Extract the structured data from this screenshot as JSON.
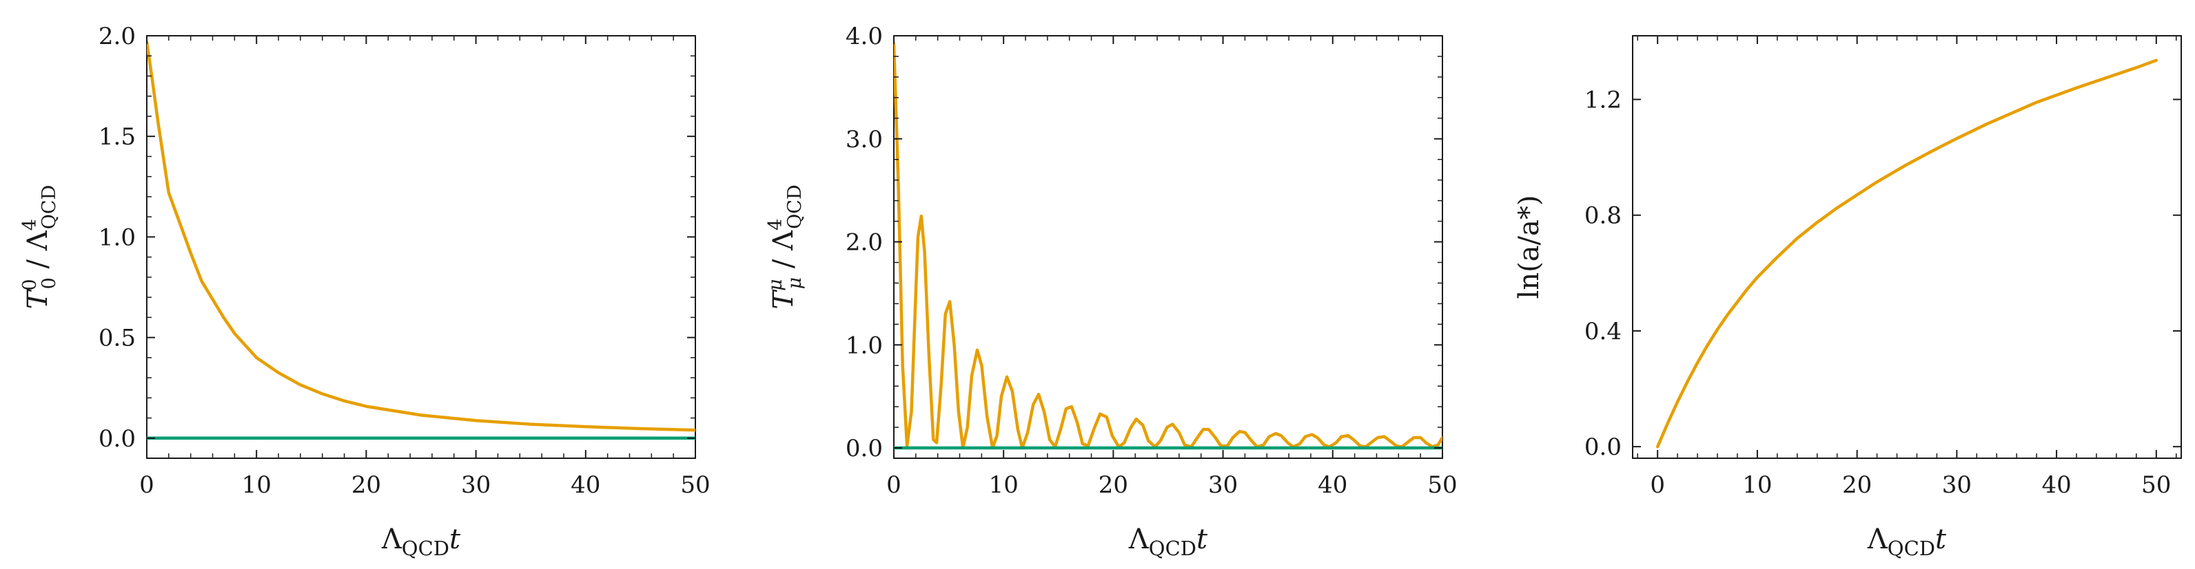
{
  "colors": {
    "orange": "#E69F00",
    "green": "#009E73",
    "axis": "#1a1a1a"
  },
  "chart_data": [
    {
      "type": "line",
      "xlabel": "ΛQCDt",
      "ylabel": "T00/Λ4QCD",
      "ylabel_parts": {
        "main": "T",
        "sup": "0",
        "sub": "0",
        "slash": " / Λ",
        "qsup": "4",
        "qsub": "QCD"
      },
      "xlabel_parts": {
        "main": "Λ",
        "sub": "QCD",
        "tail": "t"
      },
      "xlim": [
        0,
        50
      ],
      "ylim": [
        -0.1,
        2.0
      ],
      "xticks": [
        "0",
        "10",
        "20",
        "30",
        "40",
        "50"
      ],
      "xtick_values": [
        0,
        10,
        20,
        30,
        40,
        50
      ],
      "yticks": [
        "0.0",
        "0.5",
        "1.0",
        "1.5",
        "2.0"
      ],
      "ytick_values": [
        0,
        0.5,
        1.0,
        1.5,
        2.0
      ],
      "y_minor_step": 0.1,
      "series": [
        {
          "color": "#E69F00",
          "x": [
            0,
            0.5,
            1,
            2,
            3,
            4,
            5,
            6,
            7,
            8,
            9,
            10,
            12,
            14,
            16,
            18,
            20,
            25,
            30,
            35,
            40,
            45,
            50
          ],
          "y": [
            1.97,
            1.78,
            1.58,
            1.22,
            1.07,
            0.92,
            0.78,
            0.69,
            0.6,
            0.52,
            0.46,
            0.4,
            0.325,
            0.265,
            0.22,
            0.185,
            0.158,
            0.114,
            0.087,
            0.069,
            0.057,
            0.047,
            0.04
          ]
        },
        {
          "color": "#009E73",
          "x": [
            0,
            50
          ],
          "y": [
            0,
            0
          ]
        }
      ]
    },
    {
      "type": "line",
      "xlabel": "ΛQCDt",
      "ylabel": "Tμμ/Λ4QCD",
      "ylabel_parts": {
        "main": "T",
        "sup": "μ",
        "sub": "μ",
        "slash": " / Λ",
        "qsup": "4",
        "qsub": "QCD"
      },
      "xlabel_parts": {
        "main": "Λ",
        "sub": "QCD",
        "tail": "t"
      },
      "xlim": [
        0,
        50
      ],
      "ylim": [
        -0.1,
        4.0
      ],
      "xticks": [
        "0",
        "10",
        "20",
        "30",
        "40",
        "50"
      ],
      "xtick_values": [
        0,
        10,
        20,
        30,
        40,
        50
      ],
      "yticks": [
        "0.0",
        "1.0",
        "2.0",
        "3.0",
        "4.0"
      ],
      "ytick_values": [
        0,
        1.0,
        2.0,
        3.0,
        4.0
      ],
      "y_minor_step": 0.2,
      "series": [
        {
          "color": "#E69F00",
          "x": [
            0,
            0.4,
            0.8,
            1.2,
            1.6,
            2.0,
            2.2,
            2.5,
            2.8,
            3.2,
            3.6,
            3.9,
            4.3,
            4.7,
            5.1,
            5.5,
            5.9,
            6.3,
            6.7,
            7.1,
            7.6,
            8.0,
            8.5,
            9.0,
            9.4,
            9.8,
            10.3,
            10.8,
            11.3,
            11.7,
            12.2,
            12.7,
            13.2,
            13.7,
            14.2,
            14.7,
            15.2,
            15.7,
            16.2,
            16.7,
            17.2,
            17.7,
            18.3,
            18.8,
            19.4,
            19.9,
            20.5,
            21.0,
            21.6,
            22.1,
            22.7,
            23.2,
            23.8,
            24.3,
            24.9,
            25.4,
            26.0,
            26.5,
            27.1,
            27.6,
            28.2,
            28.7,
            29.3,
            29.8,
            30.4,
            30.9,
            31.5,
            32.0,
            32.6,
            33.1,
            33.7,
            34.2,
            34.8,
            35.3,
            35.9,
            36.4,
            37.0,
            37.5,
            38.1,
            38.6,
            39.2,
            39.7,
            40.3,
            40.8,
            41.4,
            41.9,
            42.5,
            43.0,
            43.6,
            44.1,
            44.7,
            45.2,
            45.8,
            46.3,
            46.9,
            47.4,
            48.0,
            48.5,
            49.1,
            49.6,
            50.0
          ],
          "y": [
            3.92,
            2.6,
            0.8,
            0.02,
            0.35,
            1.5,
            2.05,
            2.25,
            1.9,
            0.9,
            0.08,
            0.05,
            0.6,
            1.3,
            1.42,
            1.0,
            0.35,
            0.0,
            0.2,
            0.7,
            0.95,
            0.8,
            0.3,
            0.0,
            0.12,
            0.5,
            0.69,
            0.55,
            0.18,
            0.0,
            0.15,
            0.42,
            0.52,
            0.35,
            0.08,
            0.01,
            0.18,
            0.38,
            0.4,
            0.25,
            0.04,
            0.02,
            0.2,
            0.33,
            0.3,
            0.12,
            0.01,
            0.05,
            0.2,
            0.28,
            0.22,
            0.07,
            0.01,
            0.07,
            0.2,
            0.23,
            0.15,
            0.03,
            0.01,
            0.09,
            0.18,
            0.18,
            0.1,
            0.02,
            0.02,
            0.1,
            0.16,
            0.15,
            0.07,
            0.01,
            0.03,
            0.11,
            0.14,
            0.12,
            0.05,
            0.01,
            0.04,
            0.11,
            0.13,
            0.1,
            0.03,
            0.01,
            0.05,
            0.11,
            0.12,
            0.08,
            0.02,
            0.01,
            0.06,
            0.1,
            0.11,
            0.07,
            0.02,
            0.01,
            0.06,
            0.1,
            0.1,
            0.05,
            0.01,
            0.03,
            0.1
          ]
        },
        {
          "color": "#009E73",
          "x": [
            0,
            50
          ],
          "y": [
            0,
            0
          ]
        }
      ]
    },
    {
      "type": "line",
      "xlabel": "ΛQCDt",
      "ylabel": "ln(a/a*)",
      "xlabel_parts": {
        "main": "Λ",
        "sub": "QCD",
        "tail": "t"
      },
      "xlim": [
        -2.5,
        52.5
      ],
      "ylim": [
        -0.04,
        1.42
      ],
      "xticks": [
        "0",
        "10",
        "20",
        "30",
        "40",
        "50"
      ],
      "xtick_values": [
        0,
        10,
        20,
        30,
        40,
        50
      ],
      "yticks": [
        "0.0",
        "0.4",
        "0.8",
        "1.2"
      ],
      "ytick_values": [
        0,
        0.4,
        0.8,
        1.2
      ],
      "series": [
        {
          "color": "#E69F00",
          "x": [
            0,
            1,
            2,
            3,
            4,
            5,
            6,
            7,
            8,
            9,
            10,
            12,
            14,
            16,
            18,
            20,
            22,
            25,
            28,
            30,
            33,
            35,
            38,
            40,
            42,
            45,
            48,
            50
          ],
          "y": [
            0.0,
            0.08,
            0.155,
            0.225,
            0.29,
            0.35,
            0.405,
            0.455,
            0.5,
            0.545,
            0.585,
            0.655,
            0.72,
            0.775,
            0.825,
            0.87,
            0.915,
            0.975,
            1.03,
            1.065,
            1.115,
            1.145,
            1.19,
            1.215,
            1.24,
            1.275,
            1.31,
            1.335
          ]
        }
      ]
    }
  ]
}
